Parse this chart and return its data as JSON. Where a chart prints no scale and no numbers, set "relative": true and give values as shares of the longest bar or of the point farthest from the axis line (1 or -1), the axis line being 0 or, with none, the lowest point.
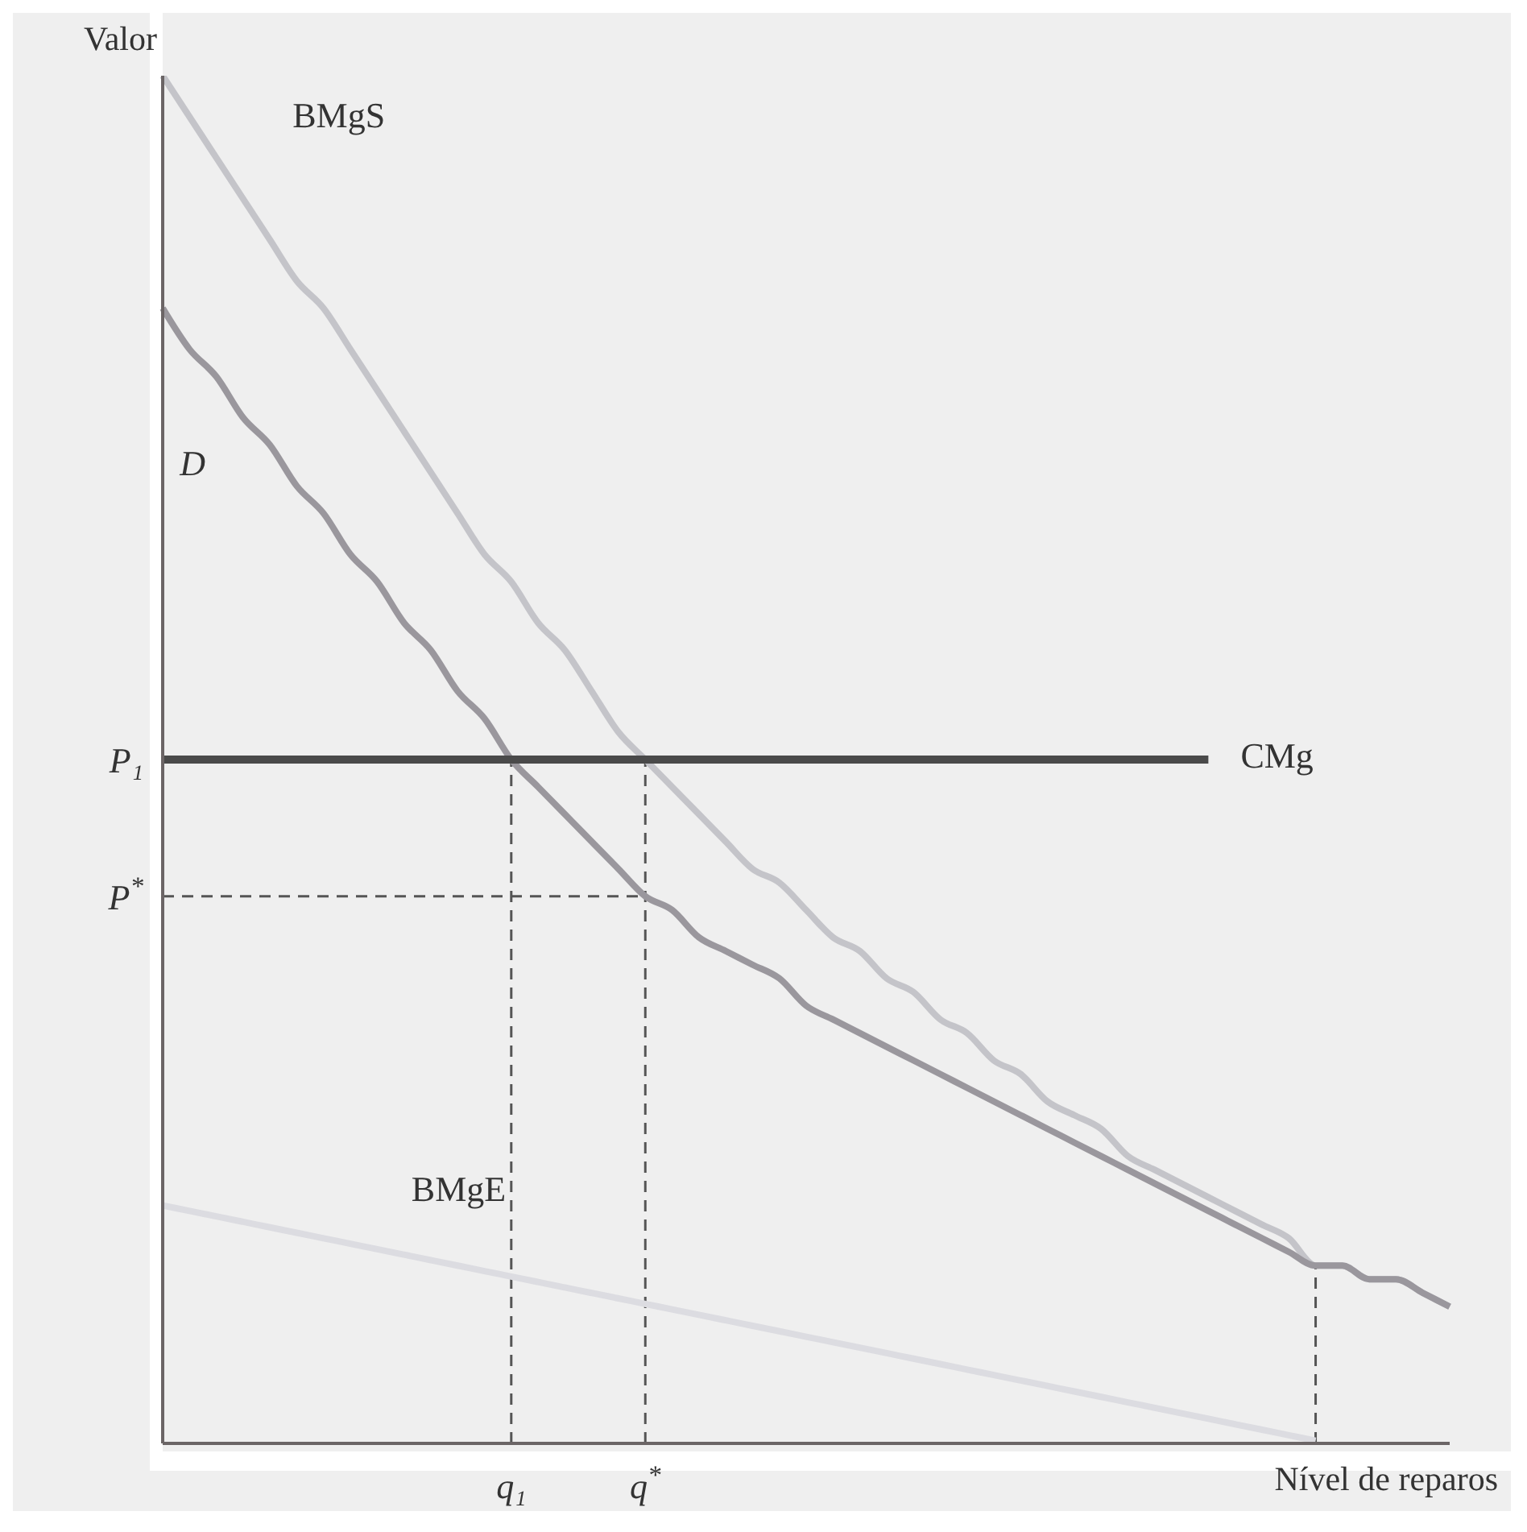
{
  "chart_data": {
    "type": "line",
    "relative": true,
    "ylabel": "Valor",
    "xlabel": "Nível de reparos",
    "categories": [
      null,
      null,
      null,
      null,
      null,
      null,
      null,
      null,
      null,
      null,
      null,
      null,
      null,
      "q₁",
      null,
      null,
      null,
      null,
      "q$^{*}$",
      null,
      null,
      null,
      null,
      null,
      null,
      null,
      null,
      null,
      null,
      null,
      null,
      null,
      null,
      null,
      null,
      null,
      null,
      null,
      null,
      null,
      null,
      null,
      null,
      null,
      null,
      null,
      null,
      null,
      null
    ],
    "series": [
      {
        "name": "BMgS",
        "color": "#c4c4c9",
        "values": [
          1.0,
          0.97,
          0.94,
          0.91,
          0.88,
          0.85,
          0.83,
          0.8,
          0.77,
          0.74,
          0.71,
          0.68,
          0.65,
          0.63,
          0.6,
          0.58,
          0.55,
          0.52,
          0.5,
          0.48,
          0.46,
          0.44,
          0.42,
          0.41,
          0.39,
          0.37,
          0.36,
          0.34,
          0.33,
          0.31,
          0.3,
          0.28,
          0.27,
          0.25,
          0.24,
          0.23,
          0.21,
          0.2,
          0.19,
          0.18,
          0.17,
          0.16,
          0.15,
          0.13,
          0.13,
          0.12,
          0.12,
          0.11,
          0.1
        ]
      },
      {
        "name": "D",
        "color": "#9a979d",
        "values": [
          0.83,
          0.8,
          0.78,
          0.75,
          0.73,
          0.7,
          0.68,
          0.65,
          0.63,
          0.6,
          0.58,
          0.55,
          0.53,
          0.5,
          0.48,
          0.46,
          0.44,
          0.42,
          0.4,
          0.39,
          0.37,
          0.36,
          0.35,
          0.34,
          0.32,
          0.31,
          0.3,
          0.29,
          0.28,
          0.27,
          0.26,
          0.25,
          0.24,
          0.23,
          0.22,
          0.21,
          0.2,
          0.19,
          0.18,
          0.17,
          0.16,
          0.15,
          0.14,
          0.13,
          0.13,
          0.12,
          0.12,
          0.11,
          0.1
        ]
      },
      {
        "name": "CMg",
        "color": "#4a4a4a",
        "values": [
          0.5,
          0.5,
          0.5,
          0.5,
          0.5,
          0.5,
          0.5,
          0.5,
          0.5,
          0.5,
          0.5,
          0.5,
          0.5,
          0.5,
          0.5,
          0.5,
          0.5,
          0.5,
          0.5,
          0.5,
          0.5,
          0.5,
          0.5,
          0.5,
          0.5,
          0.5,
          0.5,
          0.5,
          0.5,
          0.5,
          0.5,
          0.5,
          0.5,
          0.5,
          0.5,
          0.5,
          0.5,
          0.5,
          0.5,
          0.5,
          null,
          null,
          null,
          null,
          null,
          null,
          null,
          null,
          null
        ]
      },
      {
        "name": "BMgE",
        "color": "#dcdce1",
        "values": [
          0.174,
          0.17,
          0.166,
          0.162,
          0.158,
          0.154,
          0.15,
          0.146,
          0.142,
          0.138,
          0.134,
          0.13,
          0.126,
          0.122,
          0.118,
          0.114,
          0.11,
          0.106,
          0.102,
          0.098,
          0.094,
          0.09,
          0.086,
          0.082,
          0.078,
          0.074,
          0.07,
          0.066,
          0.062,
          0.058,
          0.054,
          0.05,
          0.046,
          0.042,
          0.038,
          0.034,
          0.03,
          0.026,
          0.022,
          0.018,
          0.014,
          0.01,
          0.006,
          0.002,
          null,
          null,
          null,
          null,
          null
        ]
      }
    ],
    "ref_lines": [
      {
        "axis": "y",
        "value": 0.4,
        "label": "P$^{*}$",
        "color": "#555555",
        "line_style": "dashed"
      },
      {
        "axis": "x",
        "value": "q₁",
        "color": "#555555",
        "line_style": "dashed"
      },
      {
        "axis": "x",
        "value": "q$^{*}$",
        "color": "#555555",
        "line_style": "dashed"
      }
    ],
    "annotations": [
      "P₁"
    ],
    "marker": "none",
    "line_style": "solid",
    "grid": false,
    "legend": false
  }
}
